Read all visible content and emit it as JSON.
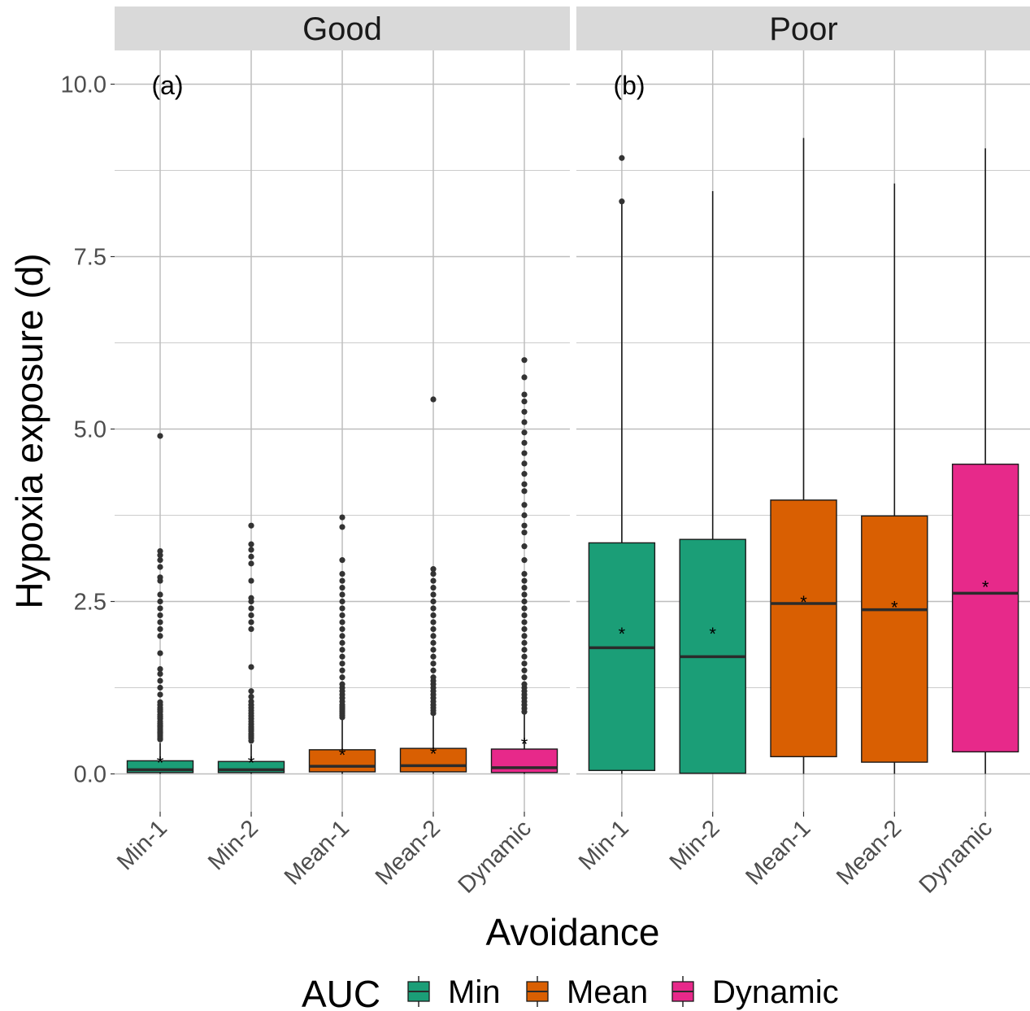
{
  "chart_data": {
    "type": "boxplot",
    "xlabel": "Avoidance",
    "ylabel": "Hypoxia exposure (d)",
    "categories": [
      "Min-1",
      "Min-2",
      "Mean-1",
      "Mean-2",
      "Dynamic"
    ],
    "category_group": [
      "Min",
      "Min",
      "Mean",
      "Mean",
      "Dynamic"
    ],
    "ylim": [
      -0.5,
      10.6
    ],
    "yticks": [
      0.0,
      2.5,
      5.0,
      7.5,
      10.0
    ],
    "ytick_labels": [
      "0.0",
      "2.5",
      "5.0",
      "7.5",
      "10.0"
    ],
    "grid": true,
    "mean_marker": "*",
    "legend": {
      "title": "AUC",
      "position": "bottom",
      "items": [
        {
          "label": "Min",
          "color": "#1B9E77"
        },
        {
          "label": "Mean",
          "color": "#D95F02"
        },
        {
          "label": "Dynamic",
          "color": "#E7298A"
        }
      ]
    },
    "panels": [
      {
        "strip": "Good",
        "tag": "(a)",
        "boxes": [
          {
            "category": "Min-1",
            "q1": 0.02,
            "median": 0.06,
            "q3": 0.19,
            "whisker_low": 0.0,
            "whisker_high": 0.45,
            "mean": 0.2,
            "outliers": [
              0.5,
              0.52,
              0.55,
              0.58,
              0.6,
              0.62,
              0.65,
              0.68,
              0.7,
              0.73,
              0.76,
              0.8,
              0.83,
              0.86,
              0.9,
              0.93,
              0.96,
              1.0,
              1.04,
              1.15,
              1.25,
              1.35,
              1.45,
              1.52,
              1.75,
              2.0,
              2.1,
              2.2,
              2.3,
              2.4,
              2.5,
              2.6,
              2.8,
              2.85,
              3.0,
              3.1,
              3.17,
              3.23,
              4.9
            ]
          },
          {
            "category": "Min-2",
            "q1": 0.02,
            "median": 0.06,
            "q3": 0.18,
            "whisker_low": 0.0,
            "whisker_high": 0.43,
            "mean": 0.2,
            "outliers": [
              0.48,
              0.52,
              0.55,
              0.58,
              0.62,
              0.65,
              0.68,
              0.72,
              0.76,
              0.8,
              0.84,
              0.88,
              0.92,
              0.96,
              1.0,
              1.05,
              1.12,
              1.2,
              1.55,
              2.1,
              2.2,
              2.3,
              2.4,
              2.5,
              2.55,
              2.8,
              3.05,
              3.15,
              3.25,
              3.33,
              3.6
            ]
          },
          {
            "category": "Mean-1",
            "q1": 0.03,
            "median": 0.11,
            "q3": 0.35,
            "whisker_low": 0.0,
            "whisker_high": 0.8,
            "mean": 0.31,
            "outliers": [
              0.82,
              0.85,
              0.88,
              0.91,
              0.94,
              0.97,
              1.0,
              1.05,
              1.1,
              1.15,
              1.2,
              1.25,
              1.3,
              1.4,
              1.5,
              1.6,
              1.7,
              1.8,
              1.9,
              2.0,
              2.1,
              2.2,
              2.3,
              2.4,
              2.5,
              2.6,
              2.7,
              2.8,
              2.9,
              3.1,
              3.58,
              3.72
            ]
          },
          {
            "category": "Mean-2",
            "q1": 0.03,
            "median": 0.12,
            "q3": 0.37,
            "whisker_low": 0.0,
            "whisker_high": 0.85,
            "mean": 0.33,
            "outliers": [
              0.88,
              0.92,
              0.96,
              1.0,
              1.05,
              1.1,
              1.15,
              1.2,
              1.25,
              1.3,
              1.35,
              1.4,
              1.5,
              1.6,
              1.7,
              1.8,
              1.9,
              2.0,
              2.1,
              2.2,
              2.3,
              2.4,
              2.5,
              2.6,
              2.7,
              2.8,
              2.9,
              2.97,
              5.43
            ]
          },
          {
            "category": "Dynamic",
            "q1": 0.02,
            "median": 0.09,
            "q3": 0.36,
            "whisker_low": 0.0,
            "whisker_high": 0.88,
            "mean": 0.47,
            "outliers": [
              0.9,
              0.95,
              1.0,
              1.05,
              1.1,
              1.15,
              1.2,
              1.25,
              1.3,
              1.4,
              1.5,
              1.6,
              1.7,
              1.8,
              1.9,
              2.0,
              2.1,
              2.2,
              2.3,
              2.4,
              2.5,
              2.6,
              2.7,
              2.8,
              2.9,
              3.1,
              3.3,
              3.5,
              3.6,
              3.75,
              3.9,
              4.1,
              4.2,
              4.35,
              4.5,
              4.65,
              4.8,
              4.95,
              5.1,
              5.25,
              5.4,
              5.5,
              5.75,
              6.0
            ]
          }
        ]
      },
      {
        "strip": "Poor",
        "tag": "(b)",
        "boxes": [
          {
            "category": "Min-1",
            "q1": 0.05,
            "median": 1.83,
            "q3": 3.35,
            "whisker_low": 0.0,
            "whisker_high": 8.3,
            "mean": 2.07,
            "outliers": [
              8.3,
              8.93
            ]
          },
          {
            "category": "Min-2",
            "q1": 0.01,
            "median": 1.7,
            "q3": 3.4,
            "whisker_low": 0.0,
            "whisker_high": 8.45,
            "mean": 2.07,
            "outliers": []
          },
          {
            "category": "Mean-1",
            "q1": 0.25,
            "median": 2.47,
            "q3": 3.97,
            "whisker_low": 0.0,
            "whisker_high": 9.22,
            "mean": 2.53,
            "outliers": []
          },
          {
            "category": "Mean-2",
            "q1": 0.17,
            "median": 2.38,
            "q3": 3.74,
            "whisker_low": 0.0,
            "whisker_high": 8.56,
            "mean": 2.45,
            "outliers": []
          },
          {
            "category": "Dynamic",
            "q1": 0.32,
            "median": 2.62,
            "q3": 4.49,
            "whisker_low": 0.0,
            "whisker_high": 9.07,
            "mean": 2.75,
            "outliers": []
          }
        ]
      }
    ]
  }
}
